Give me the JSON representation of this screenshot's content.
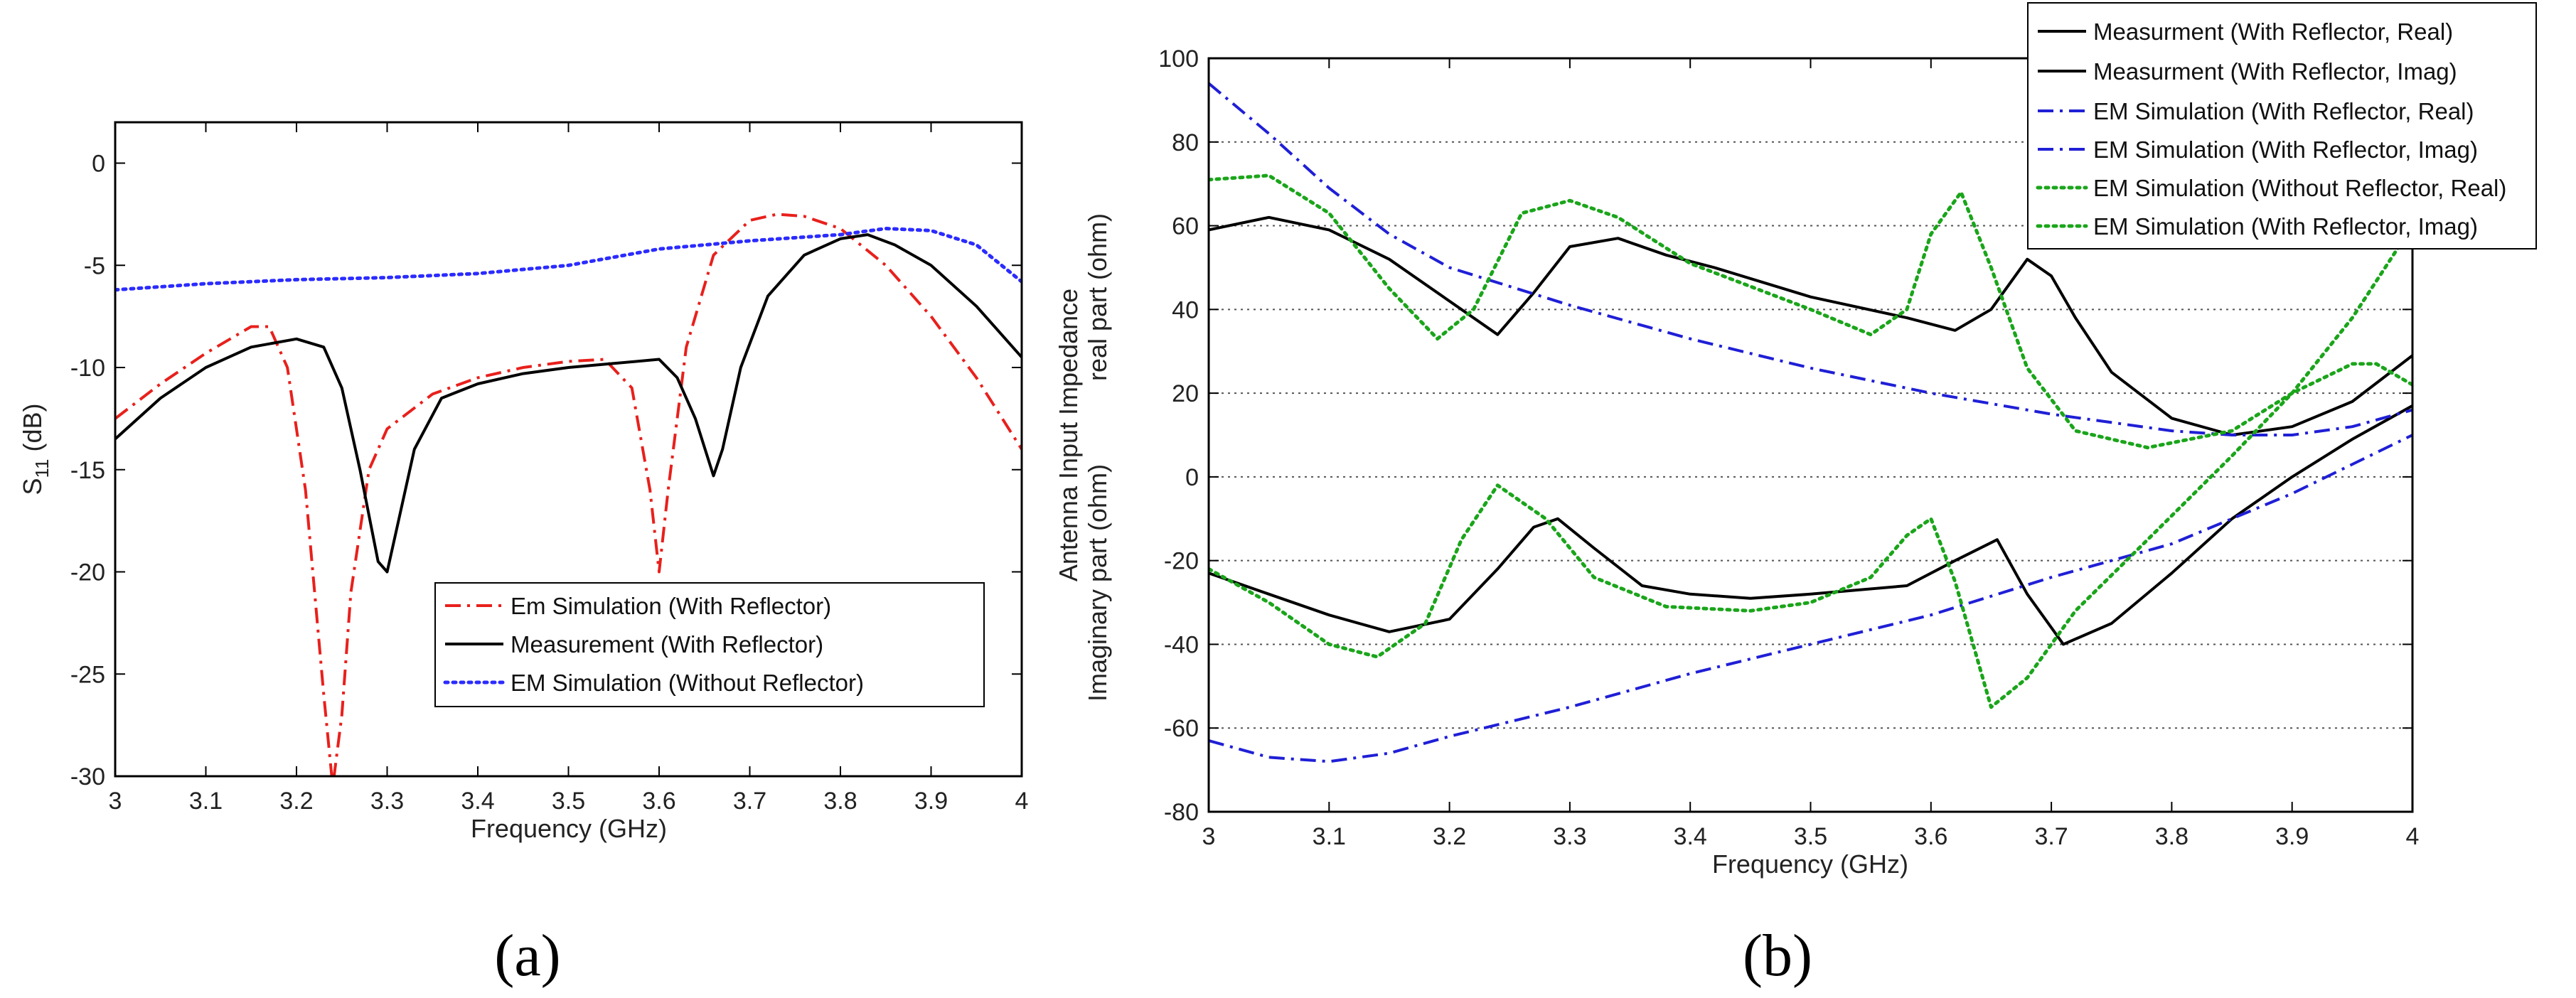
{
  "chart_data": [
    {
      "type": "line",
      "panel_label": "(a)",
      "xlabel": "Frequency (GHz)",
      "ylabel_main": "S",
      "ylabel_sub": "11",
      "ylabel_unit": " (dB)",
      "xlim": [
        3,
        4
      ],
      "ylim": [
        -30,
        2
      ],
      "xticks": [
        3,
        3.1,
        3.2,
        3.3,
        3.4,
        3.5,
        3.6,
        3.7,
        3.8,
        3.9,
        4
      ],
      "xtick_labels": [
        "3",
        "3.1",
        "3.2",
        "3.3",
        "3.4",
        "3.5",
        "3.6",
        "3.7",
        "3.8",
        "3.9",
        "4"
      ],
      "yticks": [
        -30,
        -25,
        -20,
        -15,
        -10,
        -5,
        0
      ],
      "ytick_labels": [
        "-30",
        "-25",
        "-20",
        "-15",
        "-10",
        "-5",
        "0"
      ],
      "grid": false,
      "legend_position": "bottom-right",
      "series": [
        {
          "name": "Em Simulation (With Reflector)",
          "color": "#e8201c",
          "style": "dashdot",
          "x": [
            3.0,
            3.05,
            3.1,
            3.15,
            3.17,
            3.19,
            3.21,
            3.23,
            3.24,
            3.25,
            3.26,
            3.28,
            3.3,
            3.35,
            3.4,
            3.45,
            3.5,
            3.54,
            3.57,
            3.59,
            3.6,
            3.61,
            3.63,
            3.66,
            3.7,
            3.73,
            3.76,
            3.8,
            3.85,
            3.9,
            3.95,
            4.0
          ],
          "values": [
            -12.5,
            -10.8,
            -9.3,
            -8.0,
            -8.0,
            -10.0,
            -16.0,
            -26.0,
            -30.5,
            -27.0,
            -21.0,
            -15.0,
            -13.0,
            -11.3,
            -10.5,
            -10.0,
            -9.7,
            -9.6,
            -11.0,
            -16.0,
            -20.0,
            -16.0,
            -9.0,
            -4.5,
            -2.8,
            -2.5,
            -2.6,
            -3.2,
            -5.0,
            -7.5,
            -10.5,
            -14.0
          ]
        },
        {
          "name": "Measurement (With Reflector)",
          "color": "#000000",
          "style": "solid",
          "x": [
            3.0,
            3.05,
            3.1,
            3.15,
            3.2,
            3.23,
            3.25,
            3.27,
            3.29,
            3.3,
            3.31,
            3.33,
            3.36,
            3.4,
            3.45,
            3.5,
            3.55,
            3.6,
            3.62,
            3.64,
            3.66,
            3.67,
            3.69,
            3.72,
            3.76,
            3.8,
            3.83,
            3.86,
            3.9,
            3.95,
            4.0
          ],
          "values": [
            -13.5,
            -11.5,
            -10.0,
            -9.0,
            -8.6,
            -9.0,
            -11.0,
            -15.0,
            -19.5,
            -20.0,
            -18.0,
            -14.0,
            -11.5,
            -10.8,
            -10.3,
            -10.0,
            -9.8,
            -9.6,
            -10.5,
            -12.5,
            -15.3,
            -14.0,
            -10.0,
            -6.5,
            -4.5,
            -3.7,
            -3.5,
            -4.0,
            -5.0,
            -7.0,
            -9.5
          ]
        },
        {
          "name": "EM Simulation (Without Reflector)",
          "color": "#2b2bff",
          "style": "dotted",
          "x": [
            3.0,
            3.1,
            3.2,
            3.3,
            3.4,
            3.5,
            3.6,
            3.7,
            3.8,
            3.85,
            3.9,
            3.95,
            4.0
          ],
          "values": [
            -6.2,
            -5.9,
            -5.7,
            -5.6,
            -5.4,
            -5.0,
            -4.2,
            -3.8,
            -3.5,
            -3.2,
            -3.3,
            -4.0,
            -5.8
          ]
        }
      ]
    },
    {
      "type": "line",
      "panel_label": "(b)",
      "xlabel": "Frequency (GHz)",
      "ylabel_lines": [
        "Antenna Input Impedance",
        "real part (ohm)",
        "Imaginary part (ohm)"
      ],
      "xlim": [
        3,
        4
      ],
      "ylim": [
        -80,
        100
      ],
      "xticks": [
        3,
        3.1,
        3.2,
        3.3,
        3.4,
        3.5,
        3.6,
        3.7,
        3.8,
        3.9,
        4
      ],
      "xtick_labels": [
        "3",
        "3.1",
        "3.2",
        "3.3",
        "3.4",
        "3.5",
        "3.6",
        "3.7",
        "3.8",
        "3.9",
        "4"
      ],
      "yticks": [
        -80,
        -60,
        -40,
        -20,
        0,
        20,
        40,
        60,
        80,
        100
      ],
      "ytick_labels": [
        "-80",
        "-60",
        "-40",
        "-20",
        "0",
        "20",
        "40",
        "60",
        "80",
        "100"
      ],
      "grid": true,
      "legend_position": "top-right",
      "series": [
        {
          "name": "Measurment (With Reflector, Real)",
          "color": "#000000",
          "style": "solid",
          "x": [
            3.0,
            3.05,
            3.1,
            3.15,
            3.2,
            3.24,
            3.27,
            3.3,
            3.34,
            3.38,
            3.42,
            3.5,
            3.58,
            3.62,
            3.65,
            3.68,
            3.7,
            3.72,
            3.75,
            3.8,
            3.85,
            3.9,
            3.95,
            4.0
          ],
          "values": [
            59,
            62,
            59,
            52,
            42,
            34,
            44,
            55,
            57,
            53,
            50,
            43,
            38,
            35,
            40,
            52,
            48,
            38,
            25,
            14,
            10,
            12,
            18,
            29
          ]
        },
        {
          "name": "Measurment (With Reflector, Imag)",
          "color": "#000000",
          "style": "solid",
          "x": [
            3.0,
            3.05,
            3.1,
            3.15,
            3.2,
            3.24,
            3.27,
            3.29,
            3.32,
            3.36,
            3.4,
            3.45,
            3.5,
            3.58,
            3.62,
            3.655,
            3.68,
            3.71,
            3.75,
            3.8,
            3.85,
            3.9,
            3.95,
            4.0
          ],
          "values": [
            -23,
            -28,
            -33,
            -37,
            -34,
            -22,
            -12,
            -10,
            -17,
            -26,
            -28,
            -29,
            -28,
            -26,
            -20,
            -15,
            -28,
            -40,
            -35,
            -23,
            -10,
            0,
            9,
            17
          ]
        },
        {
          "name": "EM Simulation (With Reflector, Real)",
          "color": "#1f1fd6",
          "style": "dashdot",
          "x": [
            3.0,
            3.05,
            3.1,
            3.15,
            3.2,
            3.3,
            3.4,
            3.5,
            3.6,
            3.7,
            3.8,
            3.85,
            3.9,
            3.95,
            4.0
          ],
          "values": [
            94,
            82,
            69,
            58,
            50,
            41,
            33,
            26,
            20,
            15,
            11,
            10,
            10,
            12,
            16
          ]
        },
        {
          "name": "EM Simulation (With Reflector, Imag)",
          "color": "#1f1fd6",
          "style": "dashdot",
          "x": [
            3.0,
            3.05,
            3.1,
            3.15,
            3.2,
            3.3,
            3.4,
            3.5,
            3.6,
            3.7,
            3.8,
            3.9,
            4.0
          ],
          "values": [
            -63,
            -67,
            -68,
            -66,
            -62,
            -55,
            -47,
            -40,
            -33,
            -24,
            -16,
            -4,
            10
          ]
        },
        {
          "name": "EM Simulation (Without Reflector, Real)",
          "color": "#1aa51a",
          "style": "dotted",
          "x": [
            3.0,
            3.05,
            3.1,
            3.15,
            3.19,
            3.22,
            3.26,
            3.3,
            3.34,
            3.4,
            3.5,
            3.55,
            3.58,
            3.6,
            3.625,
            3.65,
            3.68,
            3.72,
            3.78,
            3.85,
            3.9,
            3.95,
            3.97,
            4.0
          ],
          "values": [
            71,
            72,
            63,
            45,
            33,
            40,
            63,
            66,
            62,
            51,
            40,
            34,
            40,
            58,
            68,
            50,
            26,
            11,
            7,
            11,
            20,
            27,
            27,
            22
          ]
        },
        {
          "name": "EM Simulation (With Reflector, Imag)",
          "color": "#1aa51a",
          "style": "dotted",
          "x": [
            3.0,
            3.05,
            3.1,
            3.14,
            3.18,
            3.21,
            3.24,
            3.28,
            3.32,
            3.38,
            3.45,
            3.5,
            3.55,
            3.58,
            3.6,
            3.62,
            3.65,
            3.68,
            3.72,
            3.78,
            3.85,
            3.9,
            3.95,
            4.0
          ],
          "values": [
            -22,
            -30,
            -40,
            -43,
            -35,
            -15,
            -2,
            -10,
            -24,
            -31,
            -32,
            -30,
            -24,
            -14,
            -10,
            -25,
            -55,
            -48,
            -32,
            -15,
            5,
            20,
            38,
            60
          ]
        }
      ]
    }
  ]
}
